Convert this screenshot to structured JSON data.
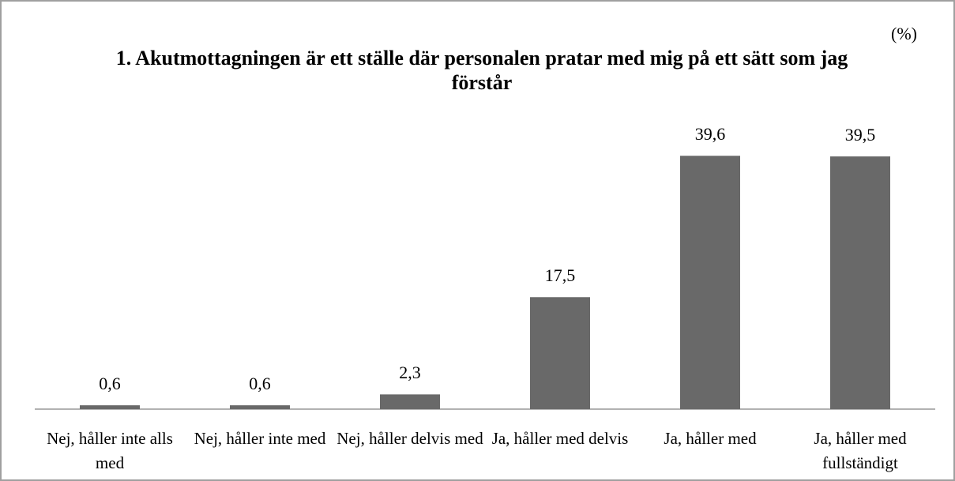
{
  "chart_data": {
    "type": "bar",
    "title": "1. Akutmottagningen är ett ställe där personalen pratar med mig på ett sätt som jag förstår",
    "annotation": "(%)",
    "categories": [
      "Nej, håller inte alls med",
      "Nej, håller inte med",
      "Nej, håller delvis med",
      "Ja, håller med delvis",
      "Ja, håller med",
      "Ja, håller med fullständigt"
    ],
    "values": [
      0.6,
      0.6,
      2.3,
      17.5,
      39.6,
      39.5
    ],
    "value_labels": [
      "0,6",
      "0,6",
      "2,3",
      "17,5",
      "39,6",
      "39,5"
    ],
    "color": "#696969"
  }
}
